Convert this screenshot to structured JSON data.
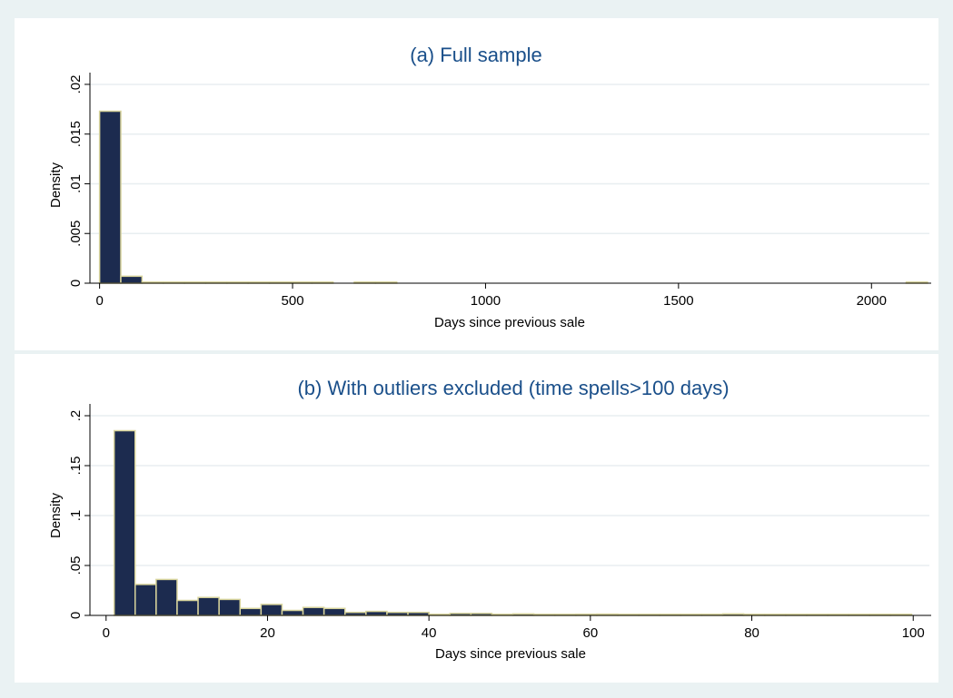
{
  "chart_data": [
    {
      "type": "bar",
      "title": "(a) Full sample",
      "xlabel": "Days since previous sale",
      "ylabel": "Density",
      "xlim": [
        -25,
        2150
      ],
      "ylim": [
        0,
        0.021
      ],
      "xticks": [
        0,
        500,
        1000,
        1500,
        2000
      ],
      "xtick_labels": [
        "0",
        "500",
        "1000",
        "1500",
        "2000"
      ],
      "yticks": [
        0,
        0.005,
        0.01,
        0.015,
        0.02
      ],
      "ytick_labels": [
        "0",
        ".005",
        ".01",
        ".015",
        ".02"
      ],
      "grid": true,
      "bin_width": 55,
      "bins": [
        {
          "x0": 0,
          "density": 0.0173
        },
        {
          "x0": 55,
          "density": 0.0007
        },
        {
          "x0": 110,
          "density": 0.0001
        },
        {
          "x0": 165,
          "density": 5e-05
        },
        {
          "x0": 220,
          "density": 3e-05
        },
        {
          "x0": 275,
          "density": 3e-05
        },
        {
          "x0": 330,
          "density": 3e-05
        },
        {
          "x0": 385,
          "density": 2e-05
        },
        {
          "x0": 440,
          "density": 3e-05
        },
        {
          "x0": 495,
          "density": 2e-05
        },
        {
          "x0": 550,
          "density": 2e-05
        },
        {
          "x0": 660,
          "density": 3e-05
        },
        {
          "x0": 715,
          "density": 2e-05
        },
        {
          "x0": 2090,
          "density": 3e-05
        }
      ]
    },
    {
      "type": "bar",
      "title": "(b) With outliers excluded (time spells>100 days)",
      "xlabel": "Days since previous sale",
      "ylabel": "Density",
      "xlim": [
        -2,
        102
      ],
      "ylim": [
        0,
        0.21
      ],
      "xticks": [
        0,
        20,
        40,
        60,
        80,
        100
      ],
      "xtick_labels": [
        "0",
        "20",
        "40",
        "60",
        "80",
        "100"
      ],
      "yticks": [
        0,
        0.05,
        0.1,
        0.15,
        0.2
      ],
      "ytick_labels": [
        "0",
        ".05",
        ".1",
        ".15",
        ".2"
      ],
      "grid": true,
      "bin_width": 2.6,
      "bins": [
        {
          "x0": 1.0,
          "density": 0.185
        },
        {
          "x0": 3.6,
          "density": 0.031
        },
        {
          "x0": 6.2,
          "density": 0.036
        },
        {
          "x0": 8.8,
          "density": 0.015
        },
        {
          "x0": 11.4,
          "density": 0.018
        },
        {
          "x0": 14.0,
          "density": 0.016
        },
        {
          "x0": 16.6,
          "density": 0.007
        },
        {
          "x0": 19.2,
          "density": 0.011
        },
        {
          "x0": 21.8,
          "density": 0.005
        },
        {
          "x0": 24.4,
          "density": 0.008
        },
        {
          "x0": 27.0,
          "density": 0.007
        },
        {
          "x0": 29.6,
          "density": 0.003
        },
        {
          "x0": 32.2,
          "density": 0.004
        },
        {
          "x0": 34.8,
          "density": 0.003
        },
        {
          "x0": 37.4,
          "density": 0.003
        },
        {
          "x0": 40.0,
          "density": 0.001
        },
        {
          "x0": 42.6,
          "density": 0.002
        },
        {
          "x0": 45.2,
          "density": 0.002
        },
        {
          "x0": 47.8,
          "density": 0.001
        },
        {
          "x0": 50.4,
          "density": 0.0015
        },
        {
          "x0": 53.0,
          "density": 0.001
        },
        {
          "x0": 55.6,
          "density": 0.001
        },
        {
          "x0": 58.2,
          "density": 0.0012
        },
        {
          "x0": 60.8,
          "density": 0.0013
        },
        {
          "x0": 63.4,
          "density": 0.0008
        },
        {
          "x0": 66.0,
          "density": 0.0008
        },
        {
          "x0": 68.6,
          "density": 0.0008
        },
        {
          "x0": 71.2,
          "density": 0.0008
        },
        {
          "x0": 73.8,
          "density": 0.0006
        },
        {
          "x0": 76.4,
          "density": 0.0015
        },
        {
          "x0": 79.0,
          "density": 0.0005
        },
        {
          "x0": 81.6,
          "density": 0.0006
        },
        {
          "x0": 84.2,
          "density": 0.0009
        },
        {
          "x0": 86.8,
          "density": 0.0005
        },
        {
          "x0": 89.4,
          "density": 0.0007
        },
        {
          "x0": 92.0,
          "density": 0.0005
        },
        {
          "x0": 94.6,
          "density": 0.0005
        },
        {
          "x0": 97.2,
          "density": 0.0004
        }
      ]
    }
  ]
}
